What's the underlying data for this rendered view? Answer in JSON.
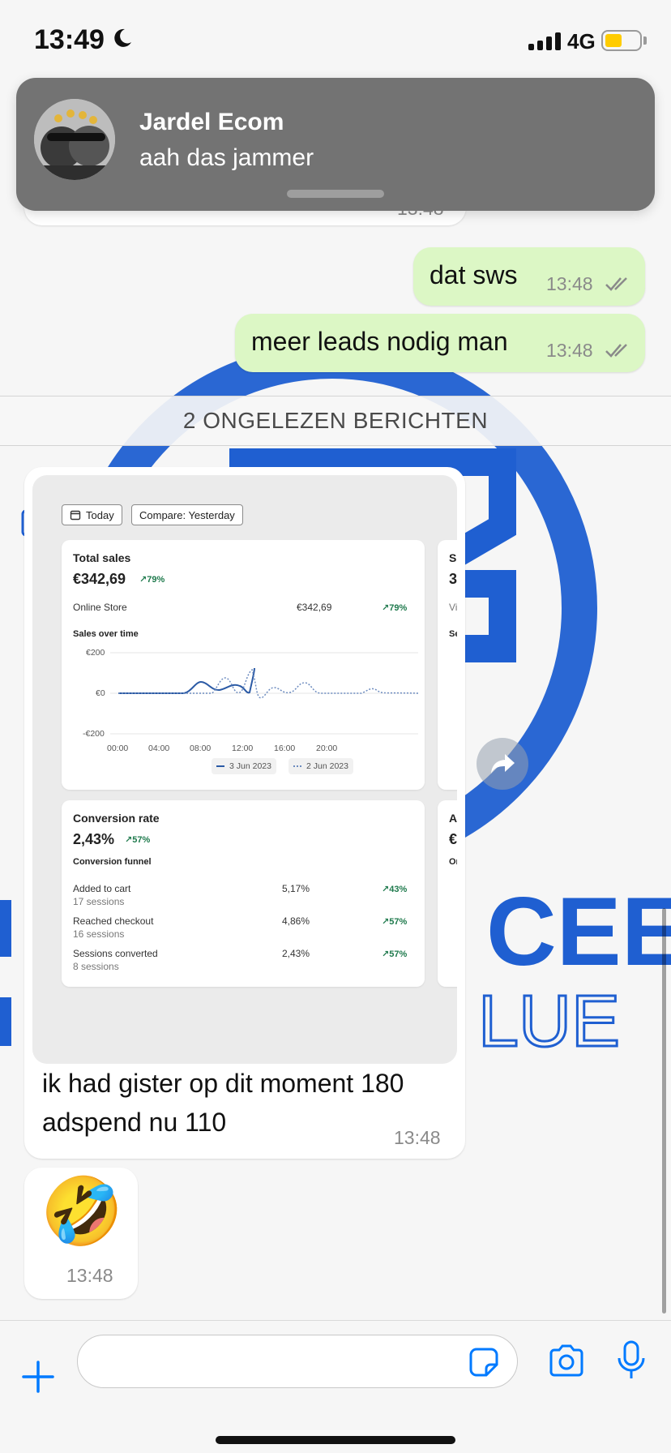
{
  "status_bar": {
    "time": "13:49",
    "network": "4G",
    "battery_fraction": 0.5
  },
  "notification": {
    "sender": "Jardel Ecom",
    "message": "aah das jammer"
  },
  "messages": {
    "hidden_time": "13:48",
    "out1": {
      "text": "dat sws",
      "time": "13:48"
    },
    "out2": {
      "text": "meer leads nodig man",
      "time": "13:48"
    },
    "unread_divider": "2 ONGELEZEN BERICHTEN",
    "image_msg": {
      "caption_line1": "ik had gister op dit moment 180",
      "caption_line2": "adspend nu 110",
      "time": "13:48"
    },
    "emoji_msg": {
      "emoji": "🤣",
      "time": "13:48"
    }
  },
  "shopify": {
    "today_btn": "Today",
    "compare_btn": "Compare: Yesterday",
    "total_sales": {
      "title": "Total sales",
      "value": "€342,69",
      "change": "↗79%",
      "row_label": "Online Store",
      "row_value": "€342,69",
      "row_change": "↗79%",
      "chart_title": "Sales over time",
      "y_ticks": [
        "€200",
        "€0",
        "-€200"
      ],
      "x_ticks": [
        "00:00",
        "04:00",
        "08:00",
        "12:00",
        "16:00",
        "20:00"
      ],
      "legend": [
        "3 Jun 2023",
        "2 Jun 2023"
      ]
    },
    "conversion": {
      "title": "Conversion rate",
      "value": "2,43%",
      "change": "↗57%",
      "funnel_title": "Conversion funnel",
      "rows": [
        {
          "label": "Added to cart",
          "sessions": "17 sessions",
          "pct": "5,17%",
          "change": "↗43%"
        },
        {
          "label": "Reached checkout",
          "sessions": "16 sessions",
          "pct": "4,86%",
          "change": "↗57%"
        },
        {
          "label": "Sessions converted",
          "sessions": "8 sessions",
          "pct": "2,43%",
          "change": "↗57%"
        }
      ]
    },
    "side_cards": {
      "c1_title": "S",
      "c1_value": "3",
      "c1_row": "Vi",
      "c1_chart": "Se",
      "c2_title": "A",
      "c2_value": "€",
      "c2_row": "Or"
    }
  },
  "input": {
    "placeholder": ""
  },
  "colors": {
    "outgoing": "#dcf7c5",
    "incoming": "#ffffff",
    "accent": "#007aff",
    "notification": "#737373"
  }
}
